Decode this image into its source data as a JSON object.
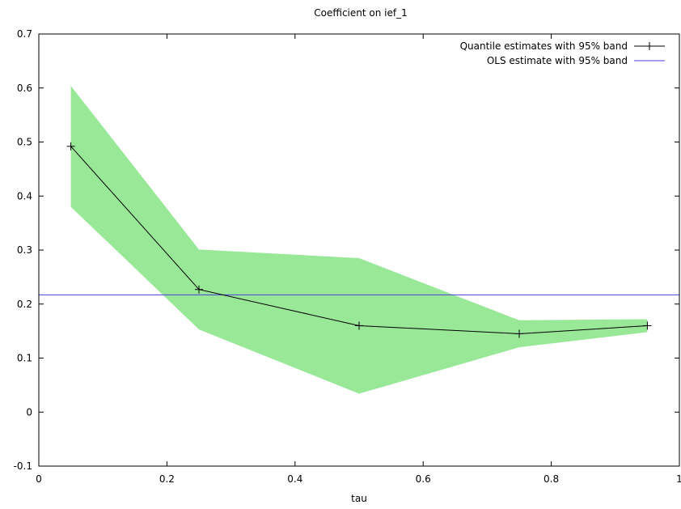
{
  "chart_data": {
    "type": "line",
    "title": "Coefficient on ief_1",
    "xlabel": "tau",
    "ylabel": "",
    "xlim": [
      0,
      1
    ],
    "ylim": [
      -0.1,
      0.7
    ],
    "xticks": [
      "0",
      "0.2",
      "0.4",
      "0.6",
      "0.8",
      "1"
    ],
    "yticks": [
      "-0.1",
      "0",
      "0.1",
      "0.2",
      "0.3",
      "0.4",
      "0.5",
      "0.6",
      "0.7"
    ],
    "grid": false,
    "legend_position": "top-right",
    "legend": {
      "quantile": "Quantile estimates with 95% band",
      "ols": "OLS estimate with 95% band"
    },
    "series": [
      {
        "name": "Quantile estimates with 95% band",
        "x": [
          0.05,
          0.25,
          0.5,
          0.75,
          0.95
        ],
        "values": [
          0.492,
          0.227,
          0.16,
          0.145,
          0.16
        ],
        "lower": [
          0.38,
          0.153,
          0.034,
          0.12,
          0.148
        ],
        "upper": [
          0.604,
          0.301,
          0.285,
          0.17,
          0.172
        ],
        "color": "#000000",
        "band_color": "#98e898"
      },
      {
        "name": "OLS estimate with 95% band",
        "value": 0.217,
        "color": "#4a3fd8"
      }
    ]
  }
}
